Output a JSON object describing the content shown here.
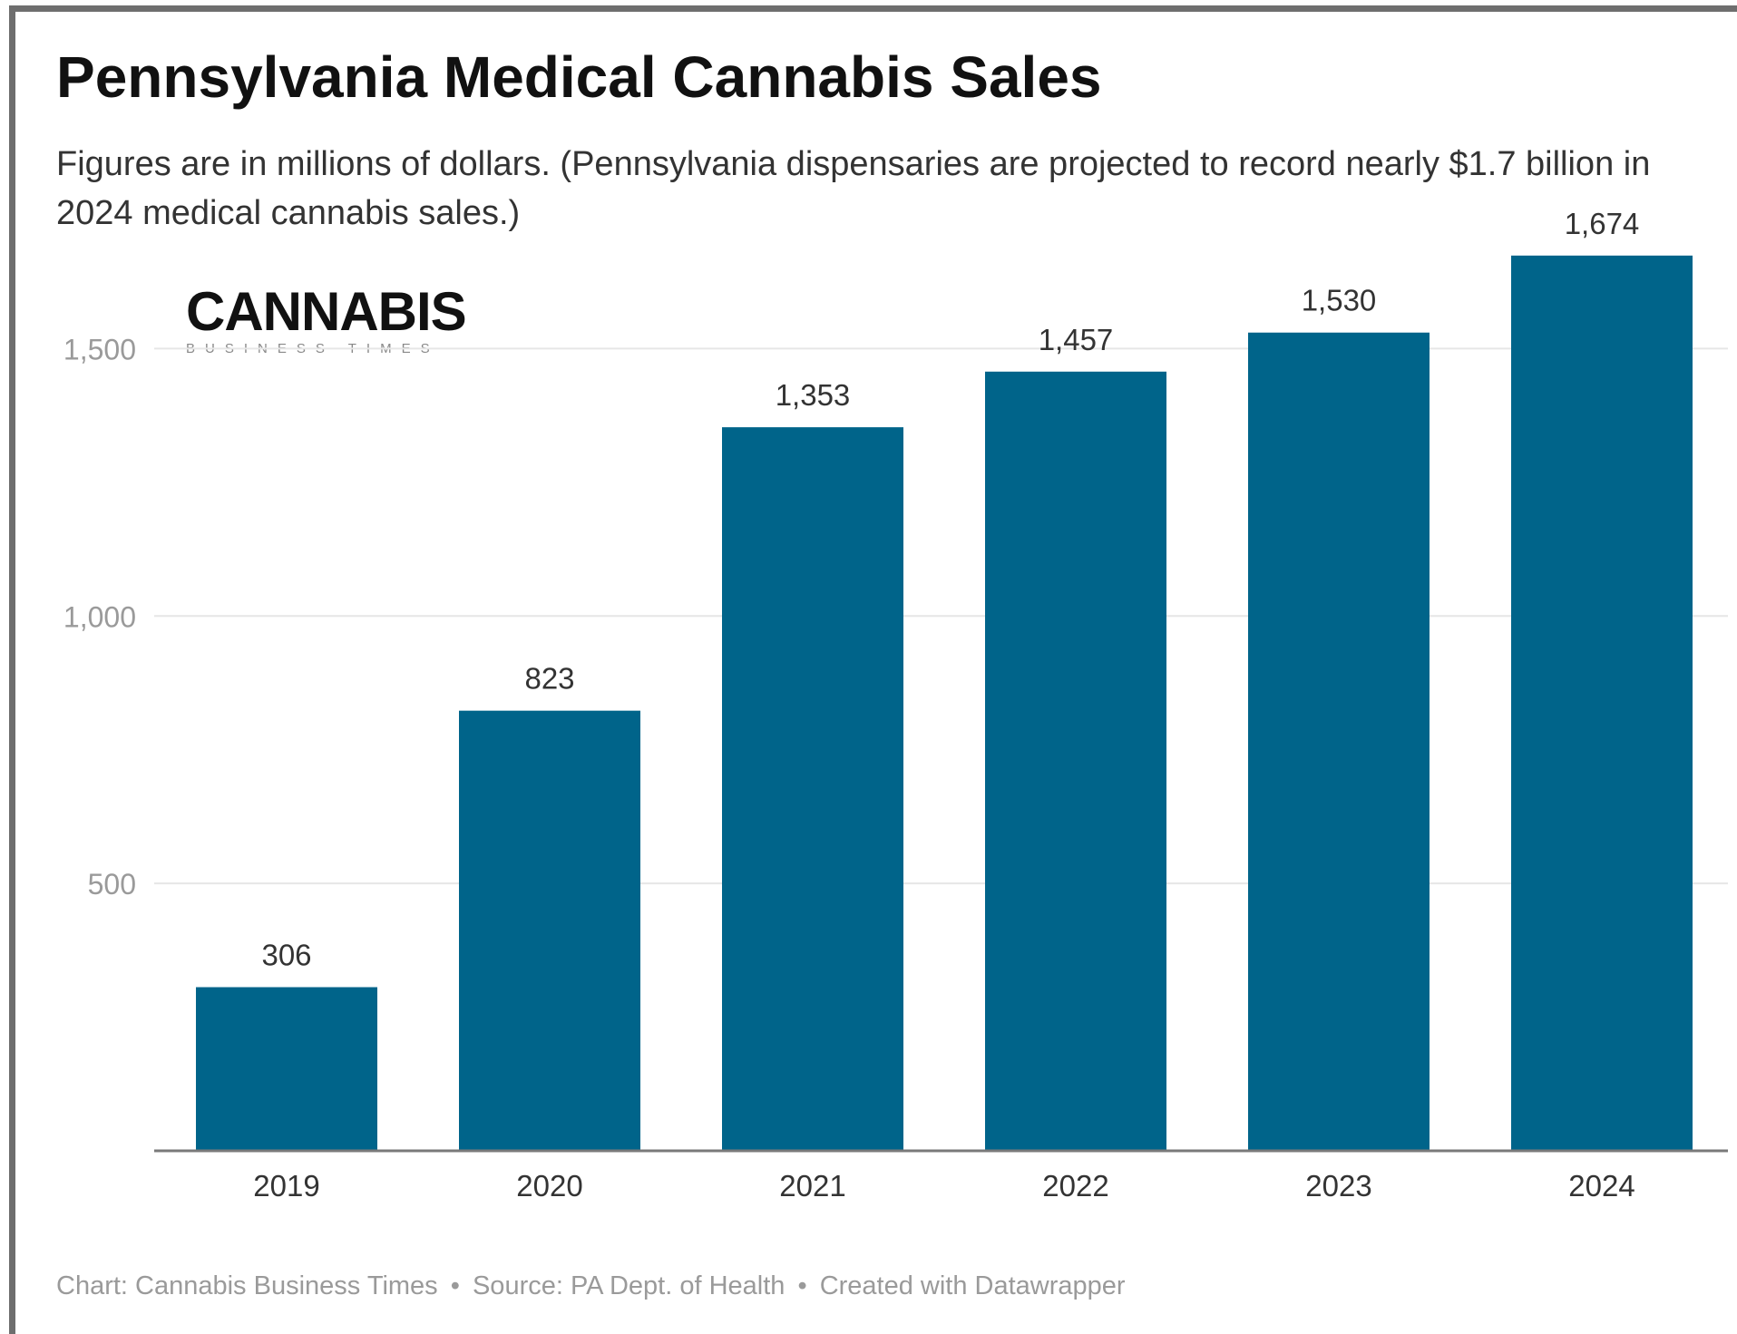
{
  "chart_data": {
    "type": "bar",
    "title": "Pennsylvania Medical Cannabis Sales",
    "subtitle": "Figures are in millions of dollars. (Pennsylvania dispensaries are projected to record nearly $1.7 billion in 2024 medical cannabis sales.)",
    "categories": [
      "2019",
      "2020",
      "2021",
      "2022",
      "2023",
      "2024"
    ],
    "values": [
      306,
      823,
      1353,
      1457,
      1530,
      1674
    ],
    "value_labels": [
      "306",
      "823",
      "1,353",
      "1,457",
      "1,530",
      "1,674"
    ],
    "y_ticks": [
      500,
      1000,
      1500
    ],
    "y_tick_labels": [
      "500",
      "1,000",
      "1,500"
    ],
    "ylim": [
      0,
      1750
    ],
    "xlabel": "",
    "ylabel": "",
    "grid": true,
    "bar_color": "#00648a"
  },
  "logo": {
    "main": "CANNABIS",
    "sub": "BUSINESS TIMES"
  },
  "footer": {
    "chart_credit": "Chart: Cannabis Business Times",
    "source": "Source: PA Dept. of Health",
    "tool": "Created with Datawrapper",
    "separator": "•"
  }
}
